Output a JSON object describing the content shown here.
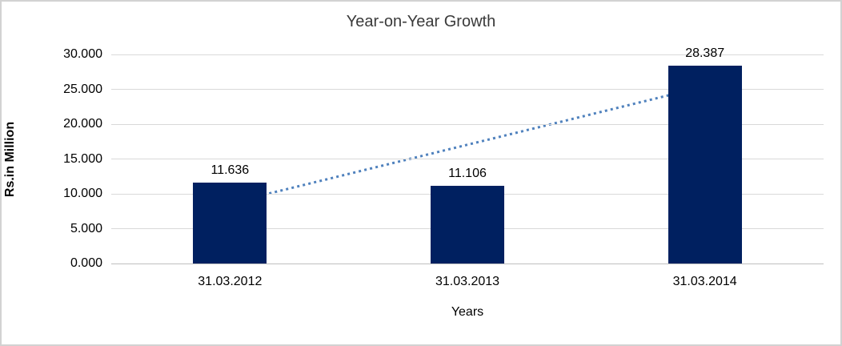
{
  "chart_data": {
    "type": "bar",
    "title": "Year-on-Year Growth",
    "xlabel": "Years",
    "ylabel": "Rs.in Million",
    "categories": [
      "31.03.2012",
      "31.03.2013",
      "31.03.2014"
    ],
    "values": [
      11.636,
      11.106,
      28.387
    ],
    "value_labels": [
      "11.636",
      "11.106",
      "28.387"
    ],
    "ylim": [
      0,
      30
    ],
    "ytick_values": [
      0,
      5,
      10,
      15,
      20,
      25,
      30
    ],
    "ytick_labels": [
      "0.000",
      "5.000",
      "10.000",
      "15.000",
      "20.000",
      "25.000",
      "30.000"
    ],
    "grid": "horizontal",
    "legend_position": "none",
    "trendline": {
      "type": "linear",
      "style": "dotted",
      "start_value": 8.67,
      "end_value": 25.42,
      "color": "#4f81bd"
    },
    "colors": {
      "bar": "#002060",
      "gridline": "#d9d9d9",
      "axis_line": "#bfbfbf",
      "text": "#000000",
      "border": "#d2d2d2",
      "background": "#ffffff"
    }
  }
}
